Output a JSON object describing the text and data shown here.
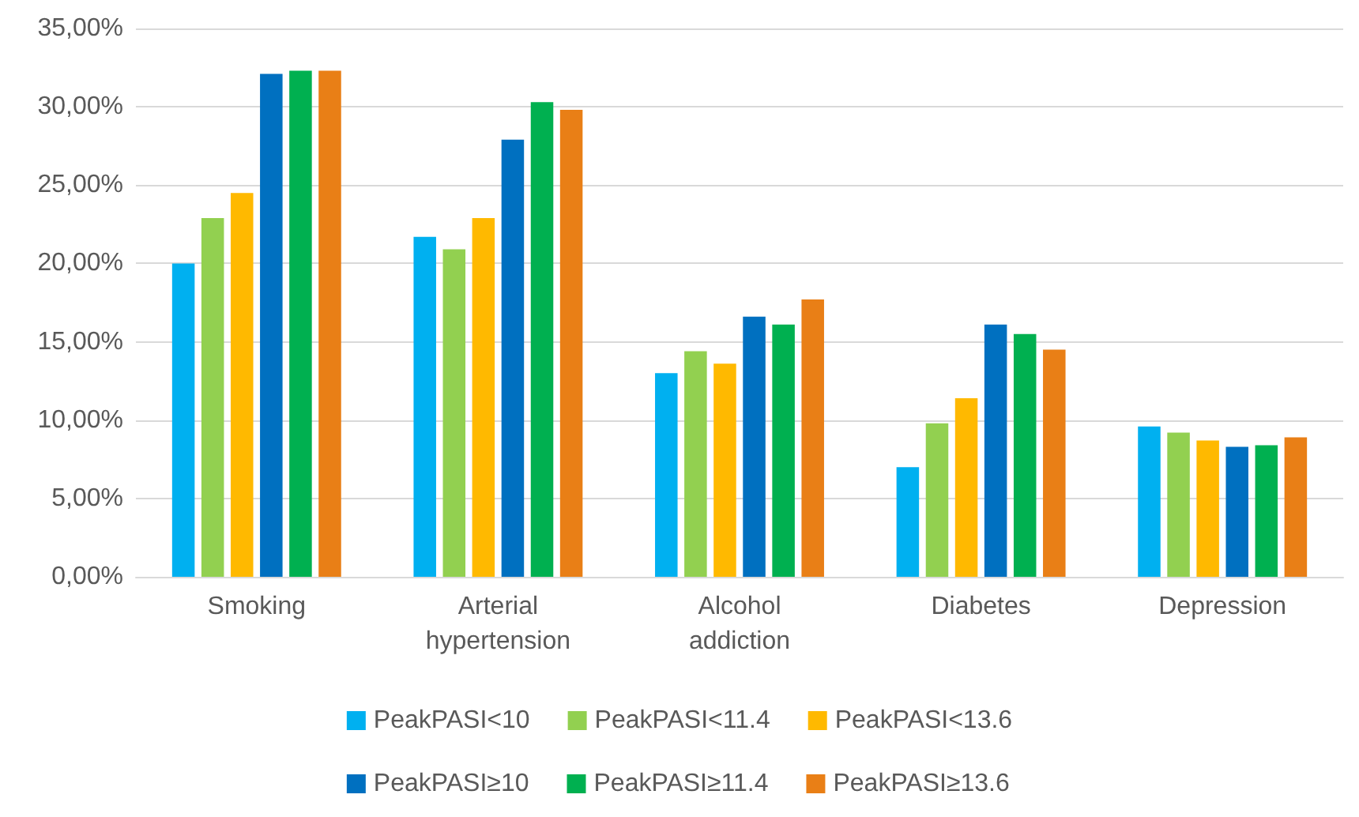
{
  "chart_data": {
    "type": "bar",
    "categories": [
      "Smoking",
      "Arterial\nhypertension",
      "Alcohol\naddiction",
      "Diabetes",
      "Depression"
    ],
    "series": [
      {
        "name": "PeakPASI<10",
        "color": "#00b0f0",
        "values": [
          20.0,
          21.7,
          13.0,
          7.0,
          9.6
        ]
      },
      {
        "name": "PeakPASI<11.4",
        "color": "#92d050",
        "values": [
          22.9,
          20.9,
          14.4,
          9.8,
          9.2
        ]
      },
      {
        "name": "PeakPASI<13.6",
        "color": "#ffb900",
        "values": [
          24.5,
          22.9,
          13.6,
          11.4,
          8.7
        ]
      },
      {
        "name": "PeakPASI≥10",
        "color": "#0070c0",
        "values": [
          32.1,
          27.9,
          16.6,
          16.1,
          8.3
        ]
      },
      {
        "name": "PeakPASI≥11.4",
        "color": "#00b050",
        "values": [
          32.3,
          30.3,
          16.1,
          15.5,
          8.4
        ]
      },
      {
        "name": "PeakPASI≥13.6",
        "color": "#e97f16",
        "values": [
          32.3,
          29.8,
          17.7,
          14.5,
          8.9
        ]
      }
    ],
    "ylim": [
      0,
      35
    ],
    "yticks": [
      {
        "value": 0,
        "label": "0,00%"
      },
      {
        "value": 5,
        "label": "5,00%"
      },
      {
        "value": 10,
        "label": "10,00%"
      },
      {
        "value": 15,
        "label": "15,00%"
      },
      {
        "value": 20,
        "label": "20,00%"
      },
      {
        "value": 25,
        "label": "25,00%"
      },
      {
        "value": 30,
        "label": "30,00%"
      },
      {
        "value": 35,
        "label": "35,00%"
      }
    ],
    "grid": "y",
    "legend": "bottom"
  }
}
